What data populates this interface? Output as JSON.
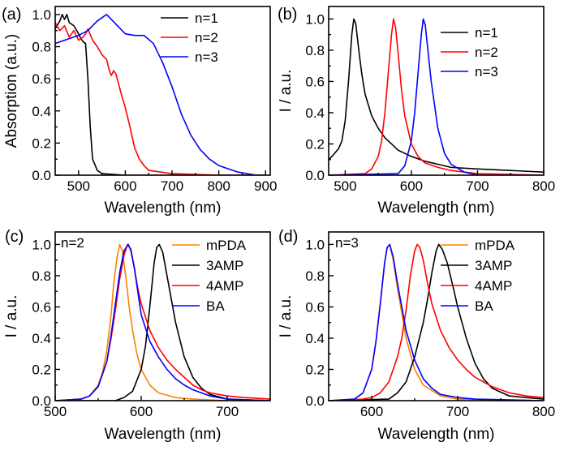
{
  "chart_data": [
    {
      "label": "(a)",
      "type": "line",
      "xlabel": "Wavelength (nm)",
      "ylabel": "Absorption (a.u.)",
      "xlim": [
        450,
        910
      ],
      "ylim": [
        0,
        1.05
      ],
      "xticks": [
        500,
        600,
        700,
        800,
        900
      ],
      "yticks": [
        0.0,
        0.2,
        0.4,
        0.6,
        0.8,
        1.0
      ],
      "ytick_labels": [
        "0.0",
        "0.2",
        "0.4",
        "0.6",
        "0.8",
        "1.0"
      ],
      "legend_position": "top-right",
      "annotation": "",
      "series": [
        {
          "name": "n=1",
          "color": "#000000",
          "x": [
            450,
            460,
            465,
            470,
            475,
            480,
            490,
            500,
            505,
            510,
            515,
            520,
            525,
            530,
            540,
            550,
            600,
            900
          ],
          "y": [
            0.91,
            0.96,
            1.0,
            0.97,
            1.0,
            0.95,
            0.93,
            0.88,
            0.85,
            0.83,
            0.82,
            0.6,
            0.3,
            0.1,
            0.03,
            0.01,
            0.0,
            0.0
          ]
        },
        {
          "name": "n=2",
          "color": "#ff0000",
          "x": [
            450,
            460,
            470,
            480,
            490,
            500,
            510,
            515,
            520,
            530,
            540,
            550,
            560,
            565,
            570,
            575,
            580,
            590,
            600,
            610,
            620,
            630,
            640,
            650,
            700,
            800,
            900
          ],
          "y": [
            0.95,
            0.9,
            0.93,
            0.86,
            0.9,
            0.84,
            0.86,
            0.88,
            0.91,
            0.84,
            0.8,
            0.75,
            0.72,
            0.66,
            0.62,
            0.65,
            0.63,
            0.52,
            0.42,
            0.3,
            0.17,
            0.1,
            0.06,
            0.03,
            0.01,
            0.0,
            0.0
          ]
        },
        {
          "name": "n=3",
          "color": "#0000ff",
          "x": [
            450,
            500,
            520,
            540,
            560,
            580,
            600,
            620,
            640,
            660,
            680,
            700,
            720,
            740,
            760,
            780,
            800,
            820,
            840,
            860,
            880,
            900
          ],
          "y": [
            0.82,
            0.87,
            0.9,
            0.96,
            1.0,
            0.94,
            0.88,
            0.87,
            0.87,
            0.82,
            0.7,
            0.55,
            0.38,
            0.25,
            0.16,
            0.1,
            0.06,
            0.04,
            0.02,
            0.01,
            0.0,
            0.0
          ]
        }
      ]
    },
    {
      "label": "(b)",
      "type": "line",
      "xlabel": "Wavelength (nm)",
      "ylabel": "I / a.u.",
      "xlim": [
        475,
        800
      ],
      "ylim": [
        0,
        1.08
      ],
      "xticks": [
        500,
        600,
        700,
        800
      ],
      "yticks": [
        0.0,
        0.2,
        0.4,
        0.6,
        0.8,
        1.0
      ],
      "ytick_labels": [
        "0.0",
        "0.2",
        "0.4",
        "0.6",
        "0.8",
        "1.0"
      ],
      "legend_position": "top-right",
      "annotation": "",
      "series": [
        {
          "name": "n=1",
          "color": "#000000",
          "x": [
            475,
            480,
            490,
            495,
            500,
            505,
            510,
            513,
            516,
            520,
            525,
            530,
            540,
            550,
            560,
            570,
            580,
            600,
            620,
            640,
            660,
            700,
            750,
            800
          ],
          "y": [
            0.1,
            0.12,
            0.17,
            0.22,
            0.35,
            0.6,
            0.9,
            1.0,
            0.97,
            0.82,
            0.65,
            0.52,
            0.38,
            0.3,
            0.24,
            0.2,
            0.16,
            0.12,
            0.09,
            0.07,
            0.05,
            0.04,
            0.03,
            0.02
          ]
        },
        {
          "name": "n=2",
          "color": "#ff0000",
          "x": [
            475,
            530,
            540,
            550,
            555,
            560,
            565,
            570,
            573,
            576,
            580,
            585,
            590,
            600,
            610,
            620,
            640,
            660,
            700,
            800
          ],
          "y": [
            0.0,
            0.01,
            0.04,
            0.12,
            0.22,
            0.4,
            0.65,
            0.9,
            1.0,
            0.95,
            0.78,
            0.55,
            0.38,
            0.2,
            0.12,
            0.08,
            0.05,
            0.03,
            0.01,
            0.0
          ]
        },
        {
          "name": "n=3",
          "color": "#0000ff",
          "x": [
            475,
            580,
            590,
            600,
            605,
            610,
            615,
            618,
            621,
            625,
            630,
            640,
            650,
            660,
            680,
            700,
            800
          ],
          "y": [
            0.0,
            0.01,
            0.06,
            0.22,
            0.4,
            0.65,
            0.9,
            1.0,
            0.96,
            0.8,
            0.6,
            0.3,
            0.14,
            0.07,
            0.02,
            0.0,
            0.0
          ]
        }
      ]
    },
    {
      "label": "(c)",
      "type": "line",
      "xlabel": "Wavelength (nm)",
      "ylabel": "I / a.u.",
      "xlim": [
        500,
        750
      ],
      "ylim": [
        0,
        1.08
      ],
      "xticks": [
        500,
        600,
        700
      ],
      "yticks": [
        0.0,
        0.2,
        0.4,
        0.6,
        0.8,
        1.0
      ],
      "ytick_labels": [
        "0.0",
        "0.2",
        "0.4",
        "0.6",
        "0.8",
        "1.0"
      ],
      "legend_position": "top-right",
      "annotation": "n=2",
      "series": [
        {
          "name": "mPDA",
          "color": "#ff8000",
          "x": [
            500,
            530,
            540,
            550,
            555,
            560,
            565,
            568,
            572,
            575,
            578,
            582,
            586,
            590,
            595,
            600,
            610,
            620,
            640,
            660,
            700,
            750
          ],
          "y": [
            0.0,
            0.01,
            0.03,
            0.1,
            0.18,
            0.32,
            0.55,
            0.75,
            0.92,
            1.0,
            0.96,
            0.8,
            0.6,
            0.45,
            0.3,
            0.2,
            0.1,
            0.05,
            0.02,
            0.01,
            0.0,
            0.0
          ]
        },
        {
          "name": "3AMP",
          "color": "#000000",
          "x": [
            500,
            570,
            580,
            590,
            600,
            605,
            610,
            615,
            618,
            621,
            625,
            630,
            640,
            650,
            660,
            670,
            680,
            700,
            750
          ],
          "y": [
            0.0,
            0.0,
            0.02,
            0.06,
            0.2,
            0.35,
            0.6,
            0.88,
            0.98,
            1.0,
            0.95,
            0.8,
            0.5,
            0.28,
            0.15,
            0.08,
            0.04,
            0.01,
            0.0
          ]
        },
        {
          "name": "4AMP",
          "color": "#ff0000",
          "x": [
            500,
            530,
            540,
            550,
            560,
            565,
            570,
            575,
            580,
            584,
            588,
            592,
            596,
            600,
            610,
            620,
            630,
            640,
            650,
            660,
            670,
            680,
            700,
            720,
            750
          ],
          "y": [
            0.0,
            0.01,
            0.03,
            0.09,
            0.25,
            0.4,
            0.58,
            0.78,
            0.93,
            1.0,
            0.97,
            0.85,
            0.72,
            0.62,
            0.45,
            0.34,
            0.26,
            0.2,
            0.15,
            0.1,
            0.07,
            0.05,
            0.03,
            0.02,
            0.01
          ]
        },
        {
          "name": "BA",
          "color": "#0000ff",
          "x": [
            500,
            530,
            540,
            550,
            560,
            565,
            570,
            575,
            580,
            585,
            588,
            592,
            596,
            600,
            610,
            620,
            630,
            640,
            650,
            660,
            680,
            700,
            750
          ],
          "y": [
            0.0,
            0.01,
            0.03,
            0.09,
            0.25,
            0.42,
            0.62,
            0.82,
            0.96,
            1.0,
            0.96,
            0.85,
            0.7,
            0.55,
            0.38,
            0.28,
            0.2,
            0.14,
            0.1,
            0.07,
            0.03,
            0.01,
            0.0
          ]
        }
      ]
    },
    {
      "label": "(d)",
      "type": "line",
      "xlabel": "Wavelength (nm)",
      "ylabel": "I / a.u.",
      "xlim": [
        550,
        800
      ],
      "ylim": [
        0,
        1.08
      ],
      "xticks": [
        600,
        700,
        800
      ],
      "yticks": [
        0.0,
        0.2,
        0.4,
        0.6,
        0.8,
        1.0
      ],
      "ytick_labels": [
        "0.0",
        "0.2",
        "0.4",
        "0.6",
        "0.8",
        "1.0"
      ],
      "legend_position": "top-right",
      "annotation": "n=3",
      "series": [
        {
          "name": "mPDA",
          "color": "#ff8000",
          "x": [
            550,
            580,
            590,
            600,
            605,
            610,
            615,
            618,
            621,
            625,
            630,
            640,
            650,
            660,
            680,
            700,
            800
          ],
          "y": [
            0.0,
            0.01,
            0.05,
            0.2,
            0.38,
            0.62,
            0.88,
            0.98,
            1.0,
            0.9,
            0.72,
            0.4,
            0.2,
            0.1,
            0.03,
            0.01,
            0.0
          ]
        },
        {
          "name": "3AMP",
          "color": "#000000",
          "x": [
            550,
            620,
            630,
            640,
            650,
            660,
            665,
            670,
            675,
            678,
            682,
            688,
            695,
            700,
            710,
            720,
            730,
            740,
            760,
            800
          ],
          "y": [
            0.0,
            0.01,
            0.05,
            0.12,
            0.28,
            0.5,
            0.65,
            0.82,
            0.96,
            1.0,
            0.97,
            0.88,
            0.72,
            0.6,
            0.4,
            0.24,
            0.14,
            0.08,
            0.03,
            0.01
          ]
        },
        {
          "name": "4AMP",
          "color": "#ff0000",
          "x": [
            550,
            590,
            600,
            610,
            620,
            630,
            635,
            640,
            645,
            650,
            653,
            656,
            660,
            665,
            670,
            680,
            690,
            700,
            710,
            720,
            740,
            760,
            780,
            800
          ],
          "y": [
            0.0,
            0.01,
            0.02,
            0.05,
            0.12,
            0.28,
            0.4,
            0.58,
            0.8,
            0.96,
            1.0,
            0.98,
            0.9,
            0.75,
            0.62,
            0.45,
            0.34,
            0.26,
            0.2,
            0.15,
            0.09,
            0.05,
            0.03,
            0.02
          ]
        },
        {
          "name": "BA",
          "color": "#0000ff",
          "x": [
            550,
            580,
            590,
            600,
            605,
            610,
            615,
            618,
            621,
            625,
            630,
            640,
            650,
            660,
            670,
            680,
            700,
            720,
            800
          ],
          "y": [
            0.0,
            0.01,
            0.05,
            0.2,
            0.38,
            0.62,
            0.88,
            0.98,
            1.0,
            0.92,
            0.75,
            0.45,
            0.26,
            0.14,
            0.08,
            0.04,
            0.02,
            0.01,
            0.0
          ]
        }
      ]
    }
  ]
}
